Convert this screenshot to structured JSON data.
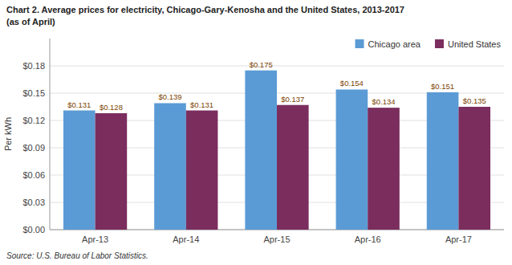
{
  "chart_data": {
    "type": "bar",
    "title": "Chart 2. Average prices for electricity, Chicago-Gary-Kenosha  and the United States, 2013-2017",
    "subtitle": "(as of April)",
    "y_label": "Per kWh",
    "annotations": [
      "Source: U.S. Bureau of Labor Statistics."
    ],
    "categories": [
      "Apr-13",
      "Apr-14",
      "Apr-15",
      "Apr-16",
      "Apr-17"
    ],
    "series": [
      {
        "name": "Chicago area",
        "color": "#5B9BD5",
        "values": [
          0.131,
          0.139,
          0.175,
          0.154,
          0.151
        ],
        "value_labels": [
          "$0.131",
          "$0.139",
          "$0.175",
          "$0.154",
          "$0.151"
        ]
      },
      {
        "name": "United States",
        "color": "#7B2D5E",
        "values": [
          0.128,
          0.131,
          0.137,
          0.134,
          0.135
        ],
        "value_labels": [
          "$0.128",
          "$0.131",
          "$0.137",
          "$0.134",
          "$0.135"
        ]
      }
    ],
    "ylim": [
      0,
      0.21
    ],
    "yticks": [
      {
        "value": 0.0,
        "label": "$0.00"
      },
      {
        "value": 0.03,
        "label": "$0.03"
      },
      {
        "value": 0.06,
        "label": "$0.06"
      },
      {
        "value": 0.09,
        "label": "$0.09"
      },
      {
        "value": 0.12,
        "label": "$0.12"
      },
      {
        "value": 0.15,
        "label": "$0.15"
      },
      {
        "value": 0.18,
        "label": "$0.18"
      }
    ],
    "grid": true,
    "legend": "upper right",
    "data_labels": true
  }
}
